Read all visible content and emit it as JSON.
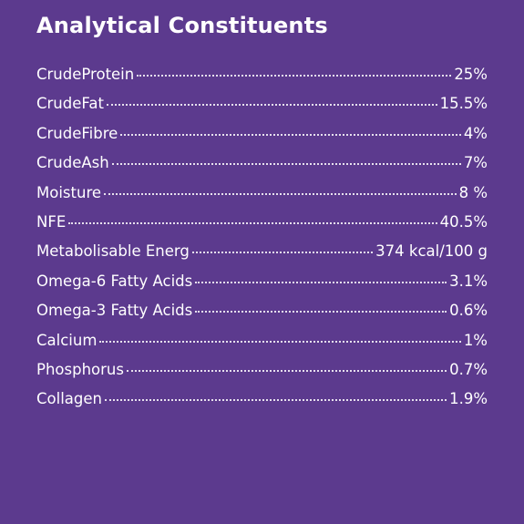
{
  "title": "Analytical Constituents",
  "rows": [
    {
      "label": "CrudeProtein",
      "value": "25%"
    },
    {
      "label": "CrudeFat",
      "value": "15.5%"
    },
    {
      "label": "CrudeFibre",
      "value": "4%"
    },
    {
      "label": "CrudeAsh",
      "value": "7%"
    },
    {
      "label": "Moisture",
      "value": "8 %"
    },
    {
      "label": "NFE",
      "value": "40.5%"
    },
    {
      "label": "Metabolisable Energ",
      "value": "374 kcal/100 g"
    },
    {
      "label": "Omega-6 Fatty Acids",
      "value": "3.1%"
    },
    {
      "label": "Omega-3 Fatty Acids",
      "value": "0.6%"
    },
    {
      "label": "Calcium",
      "value": "1%"
    },
    {
      "label": "Phosphorus",
      "value": "0.7%"
    },
    {
      "label": "Collagen",
      "value": "1.9%"
    }
  ]
}
